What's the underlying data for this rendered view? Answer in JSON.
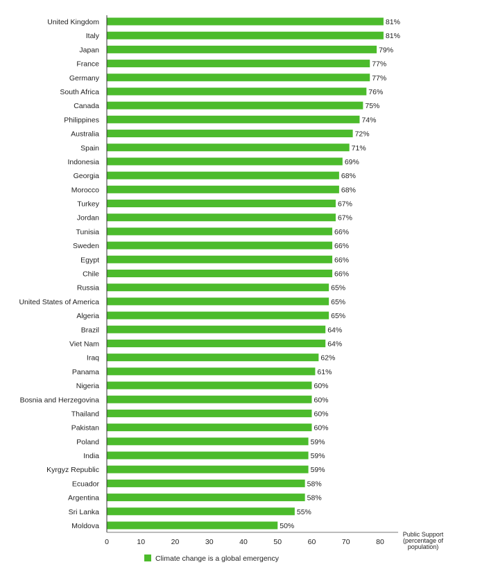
{
  "chart_data": {
    "type": "bar",
    "orientation": "horizontal",
    "categories": [
      "United Kingdom",
      "Italy",
      "Japan",
      "France",
      "Germany",
      "South Africa",
      "Canada",
      "Philippines",
      "Australia",
      "Spain",
      "Indonesia",
      "Georgia",
      "Morocco",
      "Turkey",
      "Jordan",
      "Tunisia",
      "Sweden",
      "Egypt",
      "Chile",
      "Russia",
      "United States of America",
      "Algeria",
      "Brazil",
      "Viet Nam",
      "Iraq",
      "Panama",
      "Nigeria",
      "Bosnia and Herzegovina",
      "Thailand",
      "Pakistan",
      "Poland",
      "India",
      "Kyrgyz Republic",
      "Ecuador",
      "Argentina",
      "Sri Lanka",
      "Moldova"
    ],
    "series": [
      {
        "name": "Climate change is a global emergency",
        "color": "#4cbb2c",
        "values": [
          81,
          81,
          79,
          77,
          77,
          76,
          75,
          74,
          72,
          71,
          69,
          68,
          68,
          67,
          67,
          66,
          66,
          66,
          66,
          65,
          65,
          65,
          64,
          64,
          62,
          61,
          60,
          60,
          60,
          60,
          59,
          59,
          59,
          58,
          58,
          55,
          50
        ]
      }
    ],
    "value_suffix": "%",
    "xlim": [
      0,
      80
    ],
    "xticks": [
      0,
      10,
      20,
      30,
      40,
      50,
      60,
      70,
      80
    ],
    "xlabel": [
      "Public Support",
      "(percentage of",
      "population)"
    ],
    "ylabel": "",
    "grid": false,
    "legend_position": "bottom-left"
  }
}
